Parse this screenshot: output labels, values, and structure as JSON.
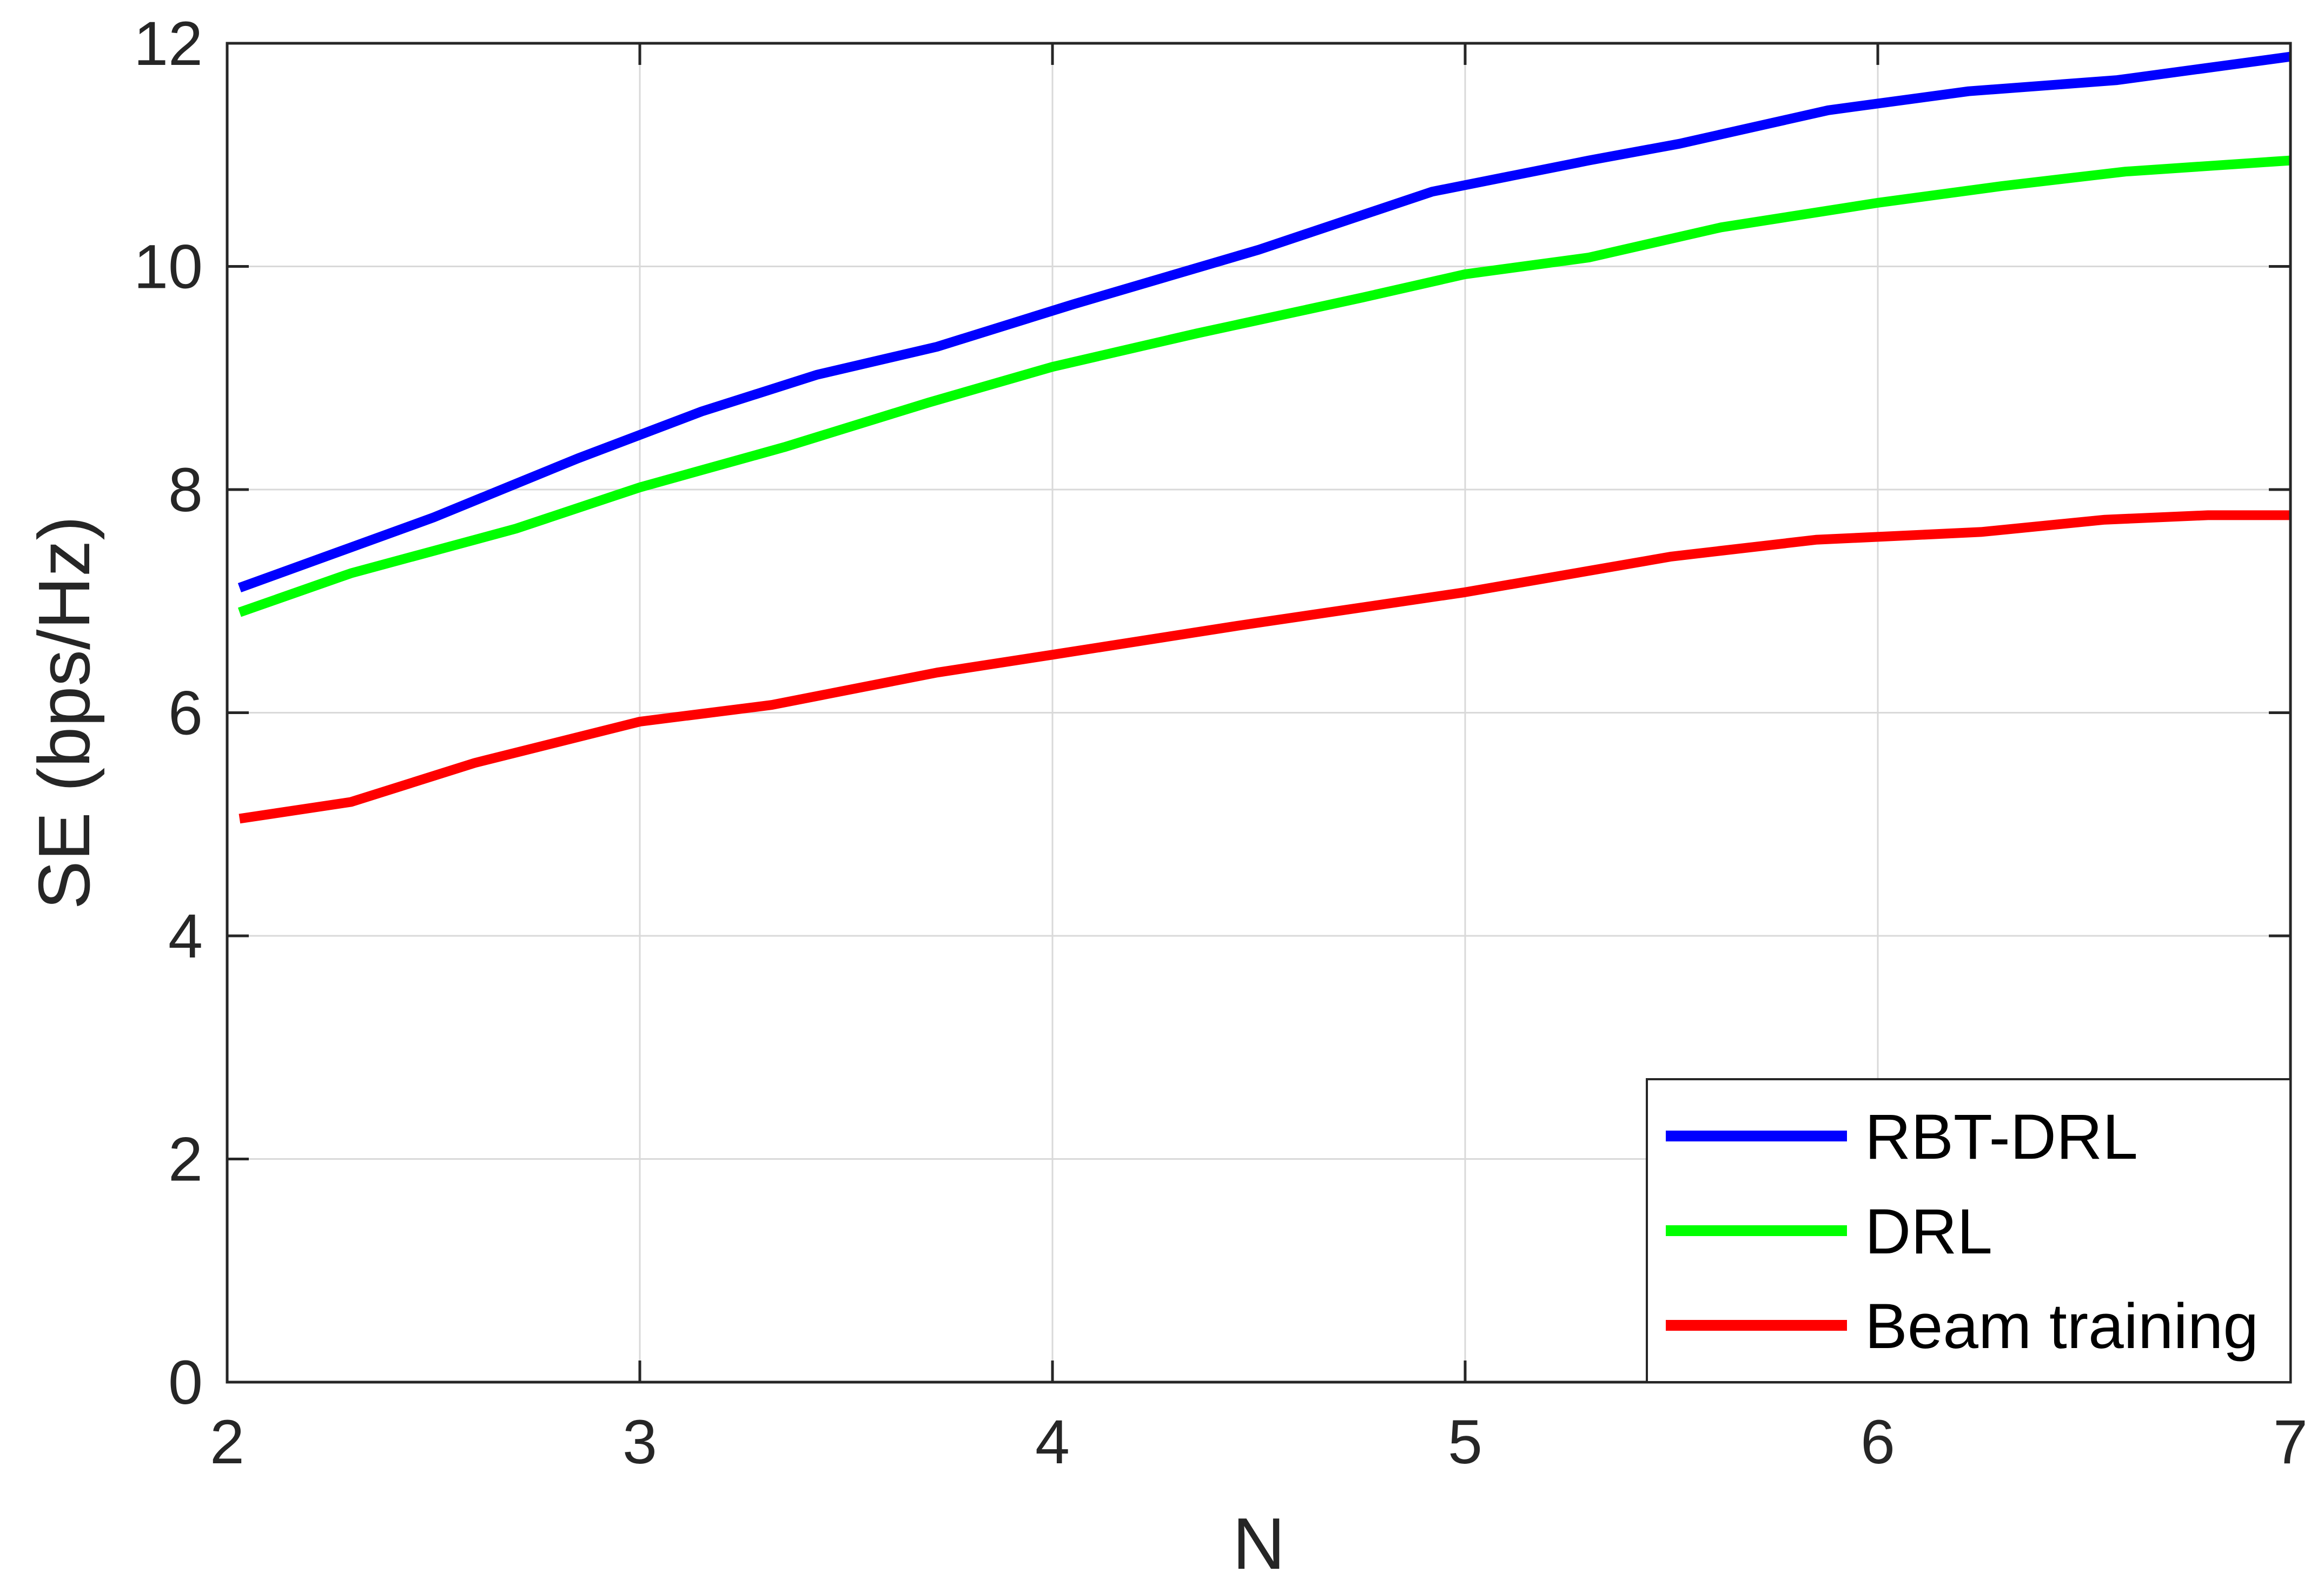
{
  "chart_data": {
    "type": "line",
    "xlabel": "N",
    "ylabel": "SE (bps/Hz)",
    "xlim": [
      2,
      7
    ],
    "ylim": [
      0,
      12
    ],
    "xticks": [
      "2",
      "3",
      "4",
      "5",
      "6",
      "7"
    ],
    "yticks": [
      "0",
      "2",
      "4",
      "6",
      "8",
      "10",
      "12"
    ],
    "grid": true,
    "legend_position": "bottom-right",
    "series": [
      {
        "name": "RBT-DRL",
        "color": "#0000FF",
        "x": [
          2.03,
          2.5,
          2.85,
          3.15,
          3.43,
          3.72,
          4.05,
          4.5,
          4.92,
          5.3,
          5.52,
          5.88,
          6.22,
          6.58,
          7.0
        ],
        "y": [
          7.12,
          7.75,
          8.28,
          8.7,
          9.03,
          9.28,
          9.66,
          10.15,
          10.67,
          10.95,
          11.1,
          11.4,
          11.57,
          11.67,
          11.88
        ]
      },
      {
        "name": "DRL",
        "color": "#00FF00",
        "x": [
          2.03,
          2.3,
          2.7,
          3.0,
          3.35,
          3.7,
          4.0,
          4.35,
          4.75,
          5.0,
          5.3,
          5.62,
          6.0,
          6.3,
          6.6,
          7.0
        ],
        "y": [
          6.9,
          7.25,
          7.65,
          8.02,
          8.38,
          8.78,
          9.1,
          9.4,
          9.72,
          9.93,
          10.08,
          10.35,
          10.57,
          10.72,
          10.85,
          10.95
        ]
      },
      {
        "name": "Beam training",
        "color": "#FF0000",
        "x": [
          2.03,
          2.3,
          2.6,
          3.0,
          3.32,
          3.72,
          4.0,
          4.45,
          5.0,
          5.5,
          5.85,
          6.25,
          6.55,
          6.8,
          7.0
        ],
        "y": [
          5.05,
          5.2,
          5.55,
          5.92,
          6.07,
          6.36,
          6.52,
          6.78,
          7.08,
          7.4,
          7.55,
          7.62,
          7.73,
          7.77,
          7.77
        ]
      }
    ]
  }
}
